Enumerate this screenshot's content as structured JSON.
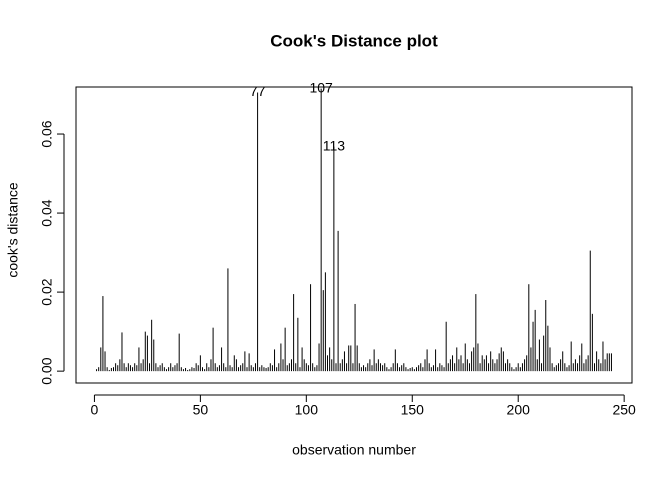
{
  "chart_data": {
    "type": "spike",
    "title": "Cook's Distance plot",
    "xlabel": "observation number",
    "ylabel": "cook's distance",
    "color": "#000000",
    "x": [
      1,
      2,
      3,
      4,
      5,
      6,
      7,
      8,
      9,
      10,
      11,
      12,
      13,
      14,
      15,
      16,
      17,
      18,
      19,
      20,
      21,
      22,
      23,
      24,
      25,
      26,
      27,
      28,
      29,
      30,
      31,
      32,
      33,
      34,
      35,
      36,
      37,
      38,
      39,
      40,
      41,
      42,
      43,
      44,
      45,
      46,
      47,
      48,
      49,
      50,
      51,
      52,
      53,
      54,
      55,
      56,
      57,
      58,
      59,
      60,
      61,
      62,
      63,
      64,
      65,
      66,
      67,
      68,
      69,
      70,
      71,
      72,
      73,
      74,
      75,
      76,
      77,
      78,
      79,
      80,
      81,
      82,
      83,
      84,
      85,
      86,
      87,
      88,
      89,
      90,
      91,
      92,
      93,
      94,
      95,
      96,
      97,
      98,
      99,
      100,
      101,
      102,
      103,
      104,
      105,
      106,
      107,
      108,
      109,
      110,
      111,
      112,
      113,
      114,
      115,
      116,
      117,
      118,
      119,
      120,
      121,
      122,
      123,
      124,
      125,
      126,
      127,
      128,
      129,
      130,
      131,
      132,
      133,
      134,
      135,
      136,
      137,
      138,
      139,
      140,
      141,
      142,
      143,
      144,
      145,
      146,
      147,
      148,
      149,
      150,
      151,
      152,
      153,
      154,
      155,
      156,
      157,
      158,
      159,
      160,
      161,
      162,
      163,
      164,
      165,
      166,
      167,
      168,
      169,
      170,
      171,
      172,
      173,
      174,
      175,
      176,
      177,
      178,
      179,
      180,
      181,
      182,
      183,
      184,
      185,
      186,
      187,
      188,
      189,
      190,
      191,
      192,
      193,
      194,
      195,
      196,
      197,
      198,
      199,
      200,
      201,
      202,
      203,
      204,
      205,
      206,
      207,
      208,
      209,
      210,
      211,
      212,
      213,
      214,
      215,
      216,
      217,
      218,
      219,
      220,
      221,
      222,
      223,
      224,
      225,
      226,
      227,
      228,
      229,
      230,
      231,
      232,
      233,
      234,
      235,
      236,
      237,
      238,
      239,
      240,
      241,
      242,
      243,
      244
    ],
    "values": [
      0.0005,
      0.001,
      0.006,
      0.019,
      0.005,
      0.001,
      0.0003,
      0.0008,
      0.001,
      0.002,
      0.0015,
      0.003,
      0.0098,
      0.002,
      0.001,
      0.002,
      0.0015,
      0.001,
      0.002,
      0.0015,
      0.006,
      0.002,
      0.003,
      0.01,
      0.009,
      0.002,
      0.013,
      0.008,
      0.002,
      0.001,
      0.0015,
      0.002,
      0.001,
      0.0005,
      0.001,
      0.002,
      0.001,
      0.0015,
      0.002,
      0.0095,
      0.001,
      0.0005,
      0.0008,
      0.0003,
      0.0005,
      0.001,
      0.0008,
      0.002,
      0.0015,
      0.004,
      0.001,
      0.0005,
      0.002,
      0.001,
      0.003,
      0.011,
      0.002,
      0.001,
      0.0015,
      0.006,
      0.002,
      0.001,
      0.026,
      0.0015,
      0.001,
      0.004,
      0.003,
      0.001,
      0.0015,
      0.002,
      0.005,
      0.001,
      0.0045,
      0.0015,
      0.001,
      0.002,
      0.0705,
      0.001,
      0.0015,
      0.001,
      0.0008,
      0.001,
      0.002,
      0.0015,
      0.0055,
      0.001,
      0.002,
      0.007,
      0.003,
      0.011,
      0.0015,
      0.002,
      0.003,
      0.0195,
      0.002,
      0.0135,
      0.001,
      0.006,
      0.003,
      0.002,
      0.0015,
      0.022,
      0.002,
      0.001,
      0.0015,
      0.007,
      0.0715,
      0.0205,
      0.025,
      0.004,
      0.006,
      0.003,
      0.0568,
      0.002,
      0.0355,
      0.002,
      0.003,
      0.005,
      0.002,
      0.0065,
      0.0065,
      0.002,
      0.017,
      0.0065,
      0.002,
      0.001,
      0.0015,
      0.001,
      0.002,
      0.003,
      0.0015,
      0.0055,
      0.002,
      0.003,
      0.002,
      0.0015,
      0.002,
      0.001,
      0.0005,
      0.001,
      0.002,
      0.0055,
      0.002,
      0.001,
      0.0015,
      0.002,
      0.001,
      0.0005,
      0.0008,
      0.001,
      0.0005,
      0.001,
      0.0015,
      0.002,
      0.001,
      0.003,
      0.0055,
      0.002,
      0.001,
      0.0015,
      0.0055,
      0.001,
      0.002,
      0.0015,
      0.001,
      0.0125,
      0.002,
      0.003,
      0.004,
      0.002,
      0.006,
      0.003,
      0.004,
      0.002,
      0.007,
      0.003,
      0.002,
      0.005,
      0.006,
      0.0195,
      0.007,
      0.002,
      0.004,
      0.003,
      0.004,
      0.002,
      0.005,
      0.003,
      0.002,
      0.003,
      0.0045,
      0.006,
      0.005,
      0.002,
      0.003,
      0.002,
      0.001,
      0.0005,
      0.001,
      0.002,
      0.001,
      0.002,
      0.003,
      0.004,
      0.022,
      0.006,
      0.0125,
      0.0155,
      0.003,
      0.008,
      0.002,
      0.009,
      0.018,
      0.0115,
      0.006,
      0.002,
      0.001,
      0.0015,
      0.002,
      0.003,
      0.005,
      0.002,
      0.001,
      0.0015,
      0.0075,
      0.002,
      0.003,
      0.002,
      0.004,
      0.007,
      0.002,
      0.003,
      0.004,
      0.0305,
      0.0145,
      0.002,
      0.005,
      0.003,
      0.002,
      0.0075,
      0.003,
      0.0045,
      0.0045,
      0.0045
    ],
    "point_labels": [
      {
        "text": "77",
        "x": 77
      },
      {
        "text": "107",
        "x": 107
      },
      {
        "text": "113",
        "x": 113
      }
    ],
    "xlim": [
      -8.7,
      253.7
    ],
    "xticks": [
      0,
      50,
      100,
      150,
      200,
      250
    ],
    "ylim": [
      -0.003,
      0.0719
    ],
    "yticks": [
      {
        "value": 0,
        "label": "0.00"
      },
      {
        "value": 0.02,
        "label": "0.02"
      },
      {
        "value": 0.04,
        "label": "0.04"
      },
      {
        "value": 0.06,
        "label": "0.06"
      }
    ]
  }
}
